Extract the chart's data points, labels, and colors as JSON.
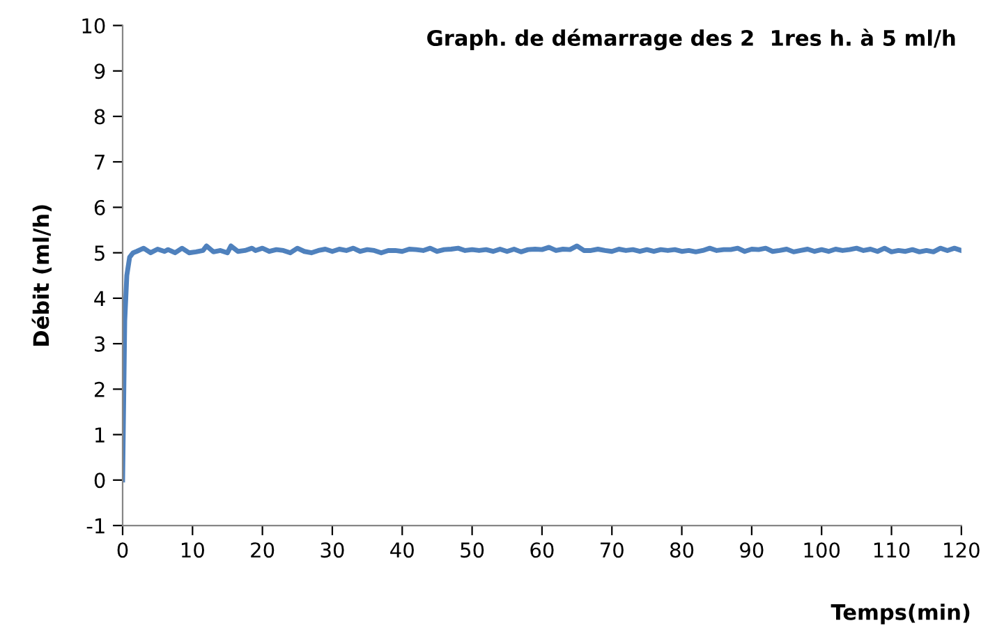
{
  "chart_data": {
    "type": "line",
    "title": "Graph. de démarrage des 2  1res h. à 5 ml/h",
    "xlabel": "Temps(min)",
    "ylabel": "Débit (ml/h)",
    "series": [
      {
        "color": "#4f81bd",
        "x": [
          0,
          0.3,
          0.6,
          1,
          1.5,
          2,
          3,
          4,
          5,
          6,
          6.5,
          7.5,
          8.5,
          9.5,
          10.5,
          11.5,
          12,
          13,
          14,
          15,
          15.5,
          16.5,
          17.5,
          18.5,
          19,
          20,
          21,
          22,
          23,
          24,
          25,
          26,
          27,
          28,
          29,
          30,
          31,
          32,
          33,
          34,
          35,
          36,
          37,
          38,
          39,
          40,
          41,
          42,
          43,
          44,
          45,
          46,
          47,
          48,
          49,
          50,
          51,
          52,
          53,
          54,
          55,
          56,
          57,
          58,
          59,
          60,
          61,
          62,
          63,
          64,
          65,
          66,
          67,
          68,
          69,
          70,
          71,
          72,
          73,
          74,
          75,
          76,
          77,
          78,
          79,
          80,
          81,
          82,
          83,
          84,
          85,
          86,
          87,
          88,
          89,
          90,
          91,
          92,
          93,
          94,
          95,
          96,
          97,
          98,
          99,
          100,
          101,
          102,
          103,
          104,
          105,
          106,
          107,
          108,
          109,
          110,
          111,
          112,
          113,
          114,
          115,
          116,
          117,
          118,
          119,
          120
        ],
        "values": [
          0,
          3.5,
          4.5,
          4.9,
          5.0,
          5.03,
          5.1,
          5.0,
          5.08,
          5.03,
          5.07,
          5.0,
          5.1,
          5.0,
          5.02,
          5.05,
          5.15,
          5.02,
          5.05,
          5.0,
          5.15,
          5.03,
          5.05,
          5.1,
          5.05,
          5.1,
          5.03,
          5.07,
          5.05,
          5.0,
          5.1,
          5.03,
          5.0,
          5.05,
          5.08,
          5.03,
          5.08,
          5.05,
          5.1,
          5.03,
          5.07,
          5.05,
          5.0,
          5.05,
          5.05,
          5.03,
          5.08,
          5.07,
          5.05,
          5.1,
          5.03,
          5.07,
          5.08,
          5.1,
          5.05,
          5.07,
          5.05,
          5.07,
          5.03,
          5.08,
          5.03,
          5.08,
          5.02,
          5.07,
          5.08,
          5.07,
          5.12,
          5.05,
          5.08,
          5.07,
          5.15,
          5.05,
          5.05,
          5.08,
          5.05,
          5.03,
          5.08,
          5.05,
          5.07,
          5.03,
          5.07,
          5.03,
          5.07,
          5.05,
          5.07,
          5.03,
          5.05,
          5.02,
          5.05,
          5.1,
          5.05,
          5.07,
          5.07,
          5.1,
          5.03,
          5.08,
          5.07,
          5.1,
          5.03,
          5.05,
          5.08,
          5.02,
          5.05,
          5.08,
          5.03,
          5.07,
          5.03,
          5.08,
          5.05,
          5.07,
          5.1,
          5.05,
          5.08,
          5.03,
          5.1,
          5.02,
          5.05,
          5.03,
          5.07,
          5.02,
          5.05,
          5.02,
          5.1,
          5.05,
          5.1,
          5.05
        ]
      }
    ],
    "xlim": [
      0,
      120
    ],
    "xticks": [
      0,
      10,
      20,
      30,
      40,
      50,
      60,
      70,
      80,
      90,
      100,
      110,
      120
    ],
    "ylim": [
      -1,
      10
    ],
    "yticks": [
      -1,
      0,
      1,
      2,
      3,
      4,
      5,
      6,
      7,
      8,
      9,
      10
    ],
    "grid": false,
    "legend": false,
    "marker": "none",
    "line_style": "solid"
  }
}
